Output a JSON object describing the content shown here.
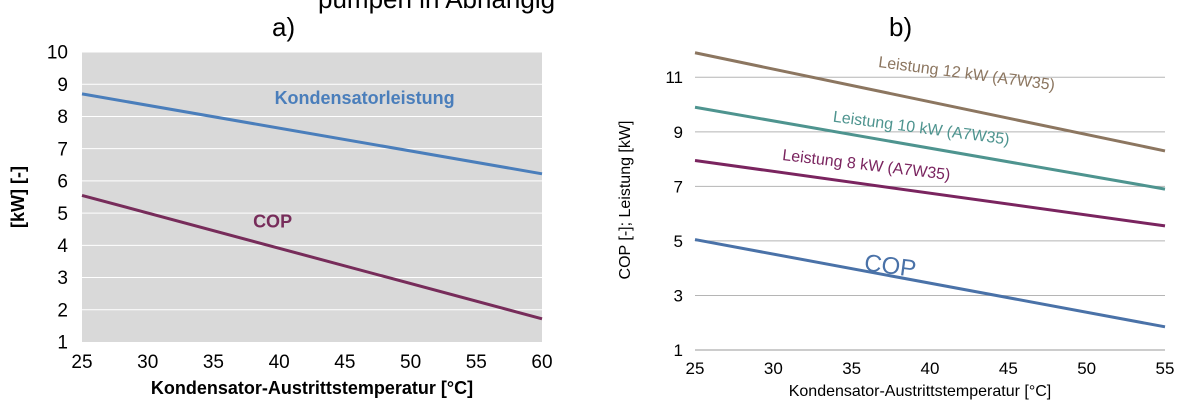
{
  "header_fragment": "pumpen in Abhängig",
  "chart_data": [
    {
      "panel_label": "a)",
      "type": "line",
      "xlabel": "Kondensator-Austrittstemperatur  [°C]",
      "ylabel": "[kW] [-]",
      "xlim": [
        25,
        60
      ],
      "ylim": [
        1,
        10
      ],
      "xticks": [
        "25",
        "30",
        "35",
        "40",
        "45",
        "50",
        "55",
        "60"
      ],
      "yticks": [
        "1",
        "2",
        "3",
        "4",
        "5",
        "6",
        "7",
        "8",
        "9",
        "10"
      ],
      "grid": true,
      "series": [
        {
          "name": "Kondensatorleistung",
          "x": [
            25,
            60
          ],
          "y": [
            8.7,
            6.22
          ],
          "color": "#4a7ebb"
        },
        {
          "name": "COP",
          "x": [
            25,
            60
          ],
          "y": [
            5.55,
            1.72
          ],
          "color": "#772c5a"
        }
      ]
    },
    {
      "panel_label": "b)",
      "type": "line",
      "xlabel": "Kondensator-Austrittstemperatur [°C]",
      "ylabel": "COP [-]; Leistung [kW]",
      "xlim": [
        25,
        55
      ],
      "ylim": [
        1,
        12
      ],
      "xticks": [
        "25",
        "30",
        "35",
        "40",
        "45",
        "50",
        "55"
      ],
      "yticks": [
        "1",
        "3",
        "5",
        "7",
        "9",
        "11"
      ],
      "grid": true,
      "series": [
        {
          "name": "Leistung 12 kW (A7W35)",
          "x": [
            25,
            55
          ],
          "y": [
            11.9,
            8.3
          ],
          "color": "#8c7660"
        },
        {
          "name": "Leistung 10 kW (A7W35)",
          "x": [
            25,
            55
          ],
          "y": [
            9.9,
            6.9
          ],
          "color": "#4e948f"
        },
        {
          "name": "Leistung 8 kW (A7W35)",
          "x": [
            25,
            55
          ],
          "y": [
            7.95,
            5.55
          ],
          "color": "#7a245f"
        },
        {
          "name": "COP",
          "x": [
            25,
            55
          ],
          "y": [
            5.05,
            1.85
          ],
          "color": "#4a72a8"
        }
      ]
    }
  ]
}
